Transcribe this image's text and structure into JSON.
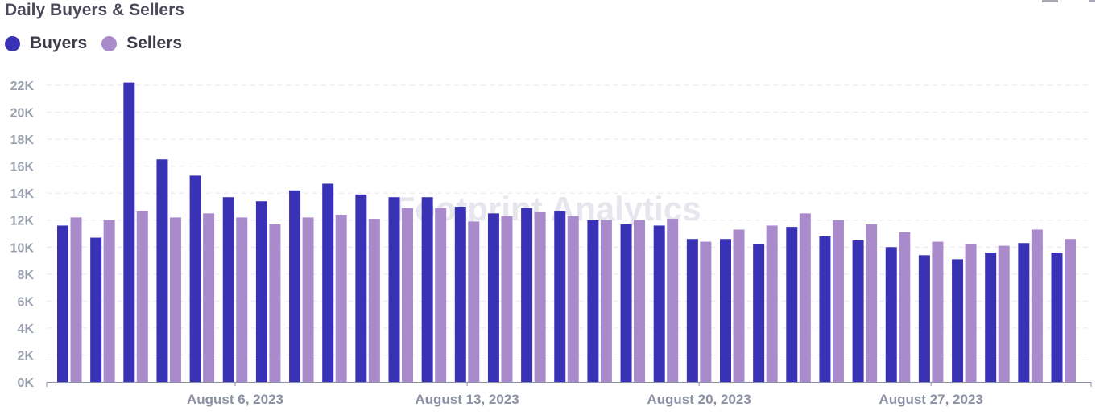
{
  "chart_data": {
    "type": "bar",
    "title": "Daily Buyers & Sellers",
    "categories": [
      "2023-08-01",
      "2023-08-02",
      "2023-08-03",
      "2023-08-04",
      "2023-08-05",
      "2023-08-06",
      "2023-08-07",
      "2023-08-08",
      "2023-08-09",
      "2023-08-10",
      "2023-08-11",
      "2023-08-12",
      "2023-08-13",
      "2023-08-14",
      "2023-08-15",
      "2023-08-16",
      "2023-08-17",
      "2023-08-18",
      "2023-08-19",
      "2023-08-20",
      "2023-08-21",
      "2023-08-22",
      "2023-08-23",
      "2023-08-24",
      "2023-08-25",
      "2023-08-26",
      "2023-08-27",
      "2023-08-28",
      "2023-08-29",
      "2023-08-30",
      "2023-08-31"
    ],
    "series": [
      {
        "name": "Buyers",
        "color": "#3a32b5",
        "values": [
          11600,
          10700,
          22200,
          16500,
          15300,
          13700,
          13400,
          14200,
          14700,
          13900,
          13700,
          13700,
          13000,
          12500,
          12900,
          12700,
          12000,
          11700,
          11600,
          10600,
          10600,
          10200,
          11500,
          10800,
          10500,
          10000,
          9400,
          9100,
          9600,
          10300,
          9600
        ]
      },
      {
        "name": "Sellers",
        "color": "#a98bcb",
        "values": [
          12200,
          12000,
          12700,
          12200,
          12500,
          12200,
          11700,
          12200,
          12400,
          12100,
          12900,
          12900,
          11900,
          12300,
          12600,
          12300,
          12000,
          12000,
          12100,
          10400,
          11300,
          11600,
          12500,
          12000,
          11700,
          11100,
          10400,
          10200,
          10100,
          11300,
          10600
        ]
      }
    ],
    "y_ticks": [
      "0K",
      "2K",
      "4K",
      "6K",
      "8K",
      "10K",
      "12K",
      "14K",
      "16K",
      "18K",
      "20K",
      "22K"
    ],
    "ylim": [
      0,
      22000
    ],
    "x_tick_labels": [
      {
        "index": 5,
        "label": "August 6, 2023"
      },
      {
        "index": 12,
        "label": "August 13, 2023"
      },
      {
        "index": 19,
        "label": "August 20, 2023"
      },
      {
        "index": 26,
        "label": "August 27, 2023"
      }
    ],
    "grid": "horizontal-dashed",
    "legend_position": "top-left",
    "watermark": "Footprint Analytics"
  }
}
